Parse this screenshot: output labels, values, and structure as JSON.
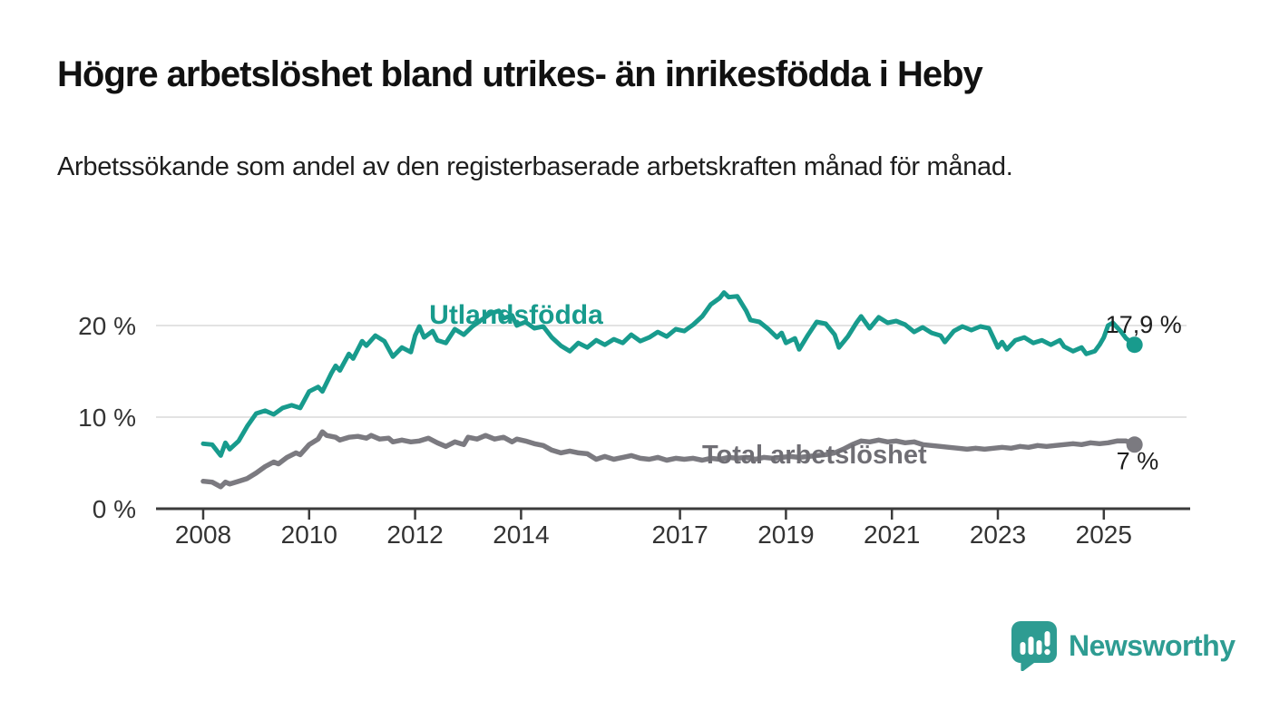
{
  "header": {
    "title": "Högre arbetslöshet bland utrikes- än inrikesfödda i Heby",
    "subtitle": "Arbetssökande som andel av den registerbaserade arbetskraften månad för månad."
  },
  "chart_data": {
    "type": "line",
    "title": "Högre arbetslöshet bland utrikes- än inrikesfödda i Heby",
    "subtitle": "Arbetssökande som andel av den registerbaserade arbetskraften månad för månad.",
    "grid": "horizontal-only",
    "legend_position": "inline-labels",
    "x_domain": [
      2007.11,
      2026.63
    ],
    "y_domain": [
      0,
      20
    ],
    "x_ticks": [
      {
        "t": 2008,
        "label": "2008"
      },
      {
        "t": 2010,
        "label": "2010"
      },
      {
        "t": 2012,
        "label": "2012"
      },
      {
        "t": 2014,
        "label": "2014"
      },
      {
        "t": 2017,
        "label": "2017"
      },
      {
        "t": 2019,
        "label": "2019"
      },
      {
        "t": 2021,
        "label": "2021"
      },
      {
        "t": 2023,
        "label": "2023"
      },
      {
        "t": 2025,
        "label": "2025"
      }
    ],
    "y_ticks": [
      {
        "v": 0,
        "label": "0 %"
      },
      {
        "v": 10,
        "label": "10 %"
      },
      {
        "v": 20,
        "label": "20 %"
      }
    ],
    "series": [
      {
        "name": "Utlandsfödda",
        "color": "#189B8D",
        "label_color": "#189B8D",
        "end_label": "17,9 %",
        "end_value": 17.9,
        "points": [
          [
            2008.0,
            7.1
          ],
          [
            2008.17,
            7.0
          ],
          [
            2008.33,
            5.8
          ],
          [
            2008.42,
            7.2
          ],
          [
            2008.5,
            6.5
          ],
          [
            2008.67,
            7.4
          ],
          [
            2008.83,
            9.0
          ],
          [
            2009.0,
            10.4
          ],
          [
            2009.17,
            10.7
          ],
          [
            2009.33,
            10.3
          ],
          [
            2009.5,
            11.0
          ],
          [
            2009.67,
            11.3
          ],
          [
            2009.83,
            11.0
          ],
          [
            2010.0,
            12.8
          ],
          [
            2010.17,
            13.3
          ],
          [
            2010.25,
            12.8
          ],
          [
            2010.42,
            14.8
          ],
          [
            2010.5,
            15.6
          ],
          [
            2010.58,
            15.1
          ],
          [
            2010.75,
            16.9
          ],
          [
            2010.83,
            16.4
          ],
          [
            2011.0,
            18.3
          ],
          [
            2011.08,
            17.8
          ],
          [
            2011.25,
            18.9
          ],
          [
            2011.42,
            18.3
          ],
          [
            2011.58,
            16.6
          ],
          [
            2011.75,
            17.6
          ],
          [
            2011.92,
            17.1
          ],
          [
            2012.0,
            18.9
          ],
          [
            2012.08,
            19.9
          ],
          [
            2012.17,
            18.7
          ],
          [
            2012.33,
            19.4
          ],
          [
            2012.42,
            18.4
          ],
          [
            2012.58,
            18.1
          ],
          [
            2012.75,
            19.6
          ],
          [
            2012.92,
            19.0
          ],
          [
            2013.08,
            19.9
          ],
          [
            2013.25,
            20.6
          ],
          [
            2013.42,
            21.3
          ],
          [
            2013.58,
            21.6
          ],
          [
            2013.67,
            20.8
          ],
          [
            2013.83,
            21.1
          ],
          [
            2013.92,
            20.0
          ],
          [
            2014.08,
            20.4
          ],
          [
            2014.25,
            19.7
          ],
          [
            2014.42,
            19.9
          ],
          [
            2014.58,
            18.7
          ],
          [
            2014.75,
            17.8
          ],
          [
            2014.92,
            17.2
          ],
          [
            2015.08,
            18.1
          ],
          [
            2015.25,
            17.6
          ],
          [
            2015.42,
            18.4
          ],
          [
            2015.58,
            17.9
          ],
          [
            2015.75,
            18.5
          ],
          [
            2015.92,
            18.1
          ],
          [
            2016.08,
            19.0
          ],
          [
            2016.25,
            18.3
          ],
          [
            2016.42,
            18.7
          ],
          [
            2016.58,
            19.3
          ],
          [
            2016.75,
            18.8
          ],
          [
            2016.92,
            19.6
          ],
          [
            2017.08,
            19.4
          ],
          [
            2017.25,
            20.1
          ],
          [
            2017.42,
            21.0
          ],
          [
            2017.58,
            22.3
          ],
          [
            2017.75,
            23.0
          ],
          [
            2017.83,
            23.6
          ],
          [
            2017.92,
            23.1
          ],
          [
            2018.08,
            23.2
          ],
          [
            2018.25,
            21.6
          ],
          [
            2018.33,
            20.6
          ],
          [
            2018.5,
            20.4
          ],
          [
            2018.67,
            19.6
          ],
          [
            2018.83,
            18.7
          ],
          [
            2018.92,
            19.2
          ],
          [
            2019.0,
            18.1
          ],
          [
            2019.17,
            18.6
          ],
          [
            2019.25,
            17.4
          ],
          [
            2019.42,
            19.0
          ],
          [
            2019.58,
            20.4
          ],
          [
            2019.75,
            20.2
          ],
          [
            2019.92,
            19.0
          ],
          [
            2020.0,
            17.6
          ],
          [
            2020.17,
            18.8
          ],
          [
            2020.33,
            20.3
          ],
          [
            2020.42,
            21.0
          ],
          [
            2020.58,
            19.7
          ],
          [
            2020.75,
            20.9
          ],
          [
            2020.92,
            20.3
          ],
          [
            2021.08,
            20.5
          ],
          [
            2021.25,
            20.1
          ],
          [
            2021.42,
            19.3
          ],
          [
            2021.58,
            19.8
          ],
          [
            2021.75,
            19.2
          ],
          [
            2021.92,
            18.9
          ],
          [
            2022.0,
            18.2
          ],
          [
            2022.17,
            19.4
          ],
          [
            2022.33,
            19.9
          ],
          [
            2022.5,
            19.5
          ],
          [
            2022.67,
            19.9
          ],
          [
            2022.83,
            19.7
          ],
          [
            2022.92,
            18.6
          ],
          [
            2023.0,
            17.6
          ],
          [
            2023.08,
            18.2
          ],
          [
            2023.17,
            17.4
          ],
          [
            2023.33,
            18.4
          ],
          [
            2023.5,
            18.7
          ],
          [
            2023.67,
            18.1
          ],
          [
            2023.83,
            18.4
          ],
          [
            2024.0,
            17.9
          ],
          [
            2024.17,
            18.4
          ],
          [
            2024.25,
            17.7
          ],
          [
            2024.42,
            17.2
          ],
          [
            2024.58,
            17.6
          ],
          [
            2024.67,
            16.9
          ],
          [
            2024.83,
            17.2
          ],
          [
            2024.92,
            17.9
          ],
          [
            2025.0,
            18.7
          ],
          [
            2025.08,
            20.0
          ],
          [
            2025.17,
            20.3
          ],
          [
            2025.33,
            19.3
          ],
          [
            2025.42,
            18.6
          ],
          [
            2025.58,
            17.9
          ]
        ]
      },
      {
        "name": "Total arbetslöshet",
        "color": "#7B7A80",
        "label_color": "#6F6E74",
        "end_label": "7 %",
        "end_value": 7.0,
        "points": [
          [
            2008.0,
            3.0
          ],
          [
            2008.17,
            2.9
          ],
          [
            2008.33,
            2.4
          ],
          [
            2008.42,
            2.9
          ],
          [
            2008.5,
            2.7
          ],
          [
            2008.67,
            3.0
          ],
          [
            2008.83,
            3.3
          ],
          [
            2009.0,
            3.9
          ],
          [
            2009.17,
            4.6
          ],
          [
            2009.33,
            5.1
          ],
          [
            2009.42,
            4.9
          ],
          [
            2009.58,
            5.6
          ],
          [
            2009.75,
            6.1
          ],
          [
            2009.83,
            5.9
          ],
          [
            2010.0,
            7.0
          ],
          [
            2010.17,
            7.6
          ],
          [
            2010.25,
            8.4
          ],
          [
            2010.33,
            8.0
          ],
          [
            2010.5,
            7.8
          ],
          [
            2010.58,
            7.5
          ],
          [
            2010.75,
            7.8
          ],
          [
            2010.92,
            7.9
          ],
          [
            2011.08,
            7.7
          ],
          [
            2011.17,
            8.0
          ],
          [
            2011.33,
            7.6
          ],
          [
            2011.5,
            7.7
          ],
          [
            2011.58,
            7.3
          ],
          [
            2011.75,
            7.5
          ],
          [
            2011.92,
            7.3
          ],
          [
            2012.08,
            7.4
          ],
          [
            2012.25,
            7.7
          ],
          [
            2012.42,
            7.2
          ],
          [
            2012.58,
            6.8
          ],
          [
            2012.75,
            7.3
          ],
          [
            2012.92,
            7.0
          ],
          [
            2013.0,
            7.8
          ],
          [
            2013.17,
            7.6
          ],
          [
            2013.33,
            8.0
          ],
          [
            2013.5,
            7.6
          ],
          [
            2013.67,
            7.8
          ],
          [
            2013.83,
            7.3
          ],
          [
            2013.92,
            7.6
          ],
          [
            2014.08,
            7.4
          ],
          [
            2014.25,
            7.1
          ],
          [
            2014.42,
            6.9
          ],
          [
            2014.58,
            6.4
          ],
          [
            2014.75,
            6.1
          ],
          [
            2014.92,
            6.3
          ],
          [
            2015.08,
            6.1
          ],
          [
            2015.25,
            6.0
          ],
          [
            2015.42,
            5.4
          ],
          [
            2015.58,
            5.7
          ],
          [
            2015.75,
            5.4
          ],
          [
            2015.92,
            5.6
          ],
          [
            2016.08,
            5.8
          ],
          [
            2016.25,
            5.5
          ],
          [
            2016.42,
            5.4
          ],
          [
            2016.58,
            5.6
          ],
          [
            2016.75,
            5.3
          ],
          [
            2016.92,
            5.5
          ],
          [
            2017.08,
            5.4
          ],
          [
            2017.25,
            5.5
          ],
          [
            2017.42,
            5.3
          ],
          [
            2017.58,
            5.5
          ],
          [
            2017.75,
            5.4
          ],
          [
            2017.92,
            5.6
          ],
          [
            2018.08,
            5.5
          ],
          [
            2018.25,
            5.6
          ],
          [
            2018.42,
            5.4
          ],
          [
            2018.58,
            5.6
          ],
          [
            2018.75,
            5.5
          ],
          [
            2018.92,
            5.6
          ],
          [
            2019.08,
            5.7
          ],
          [
            2019.25,
            5.6
          ],
          [
            2019.42,
            5.7
          ],
          [
            2019.58,
            5.8
          ],
          [
            2019.75,
            5.9
          ],
          [
            2019.92,
            6.1
          ],
          [
            2020.08,
            6.5
          ],
          [
            2020.25,
            7.0
          ],
          [
            2020.42,
            7.4
          ],
          [
            2020.58,
            7.3
          ],
          [
            2020.75,
            7.5
          ],
          [
            2020.92,
            7.3
          ],
          [
            2021.08,
            7.4
          ],
          [
            2021.25,
            7.2
          ],
          [
            2021.42,
            7.3
          ],
          [
            2021.58,
            7.0
          ],
          [
            2021.75,
            6.9
          ],
          [
            2021.92,
            6.8
          ],
          [
            2022.08,
            6.7
          ],
          [
            2022.25,
            6.6
          ],
          [
            2022.42,
            6.5
          ],
          [
            2022.58,
            6.6
          ],
          [
            2022.75,
            6.5
          ],
          [
            2022.92,
            6.6
          ],
          [
            2023.08,
            6.7
          ],
          [
            2023.25,
            6.6
          ],
          [
            2023.42,
            6.8
          ],
          [
            2023.58,
            6.7
          ],
          [
            2023.75,
            6.9
          ],
          [
            2023.92,
            6.8
          ],
          [
            2024.08,
            6.9
          ],
          [
            2024.25,
            7.0
          ],
          [
            2024.42,
            7.1
          ],
          [
            2024.58,
            7.0
          ],
          [
            2024.75,
            7.2
          ],
          [
            2024.92,
            7.1
          ],
          [
            2025.08,
            7.2
          ],
          [
            2025.25,
            7.4
          ],
          [
            2025.42,
            7.4
          ],
          [
            2025.58,
            7.0
          ]
        ]
      }
    ],
    "colors": {
      "grid": "#DADADA",
      "axis": "#3B3B3B",
      "tick_text": "#333333",
      "end_label_text": "#1d1d1d"
    }
  },
  "footer": {
    "brand": "Newsworthy"
  }
}
